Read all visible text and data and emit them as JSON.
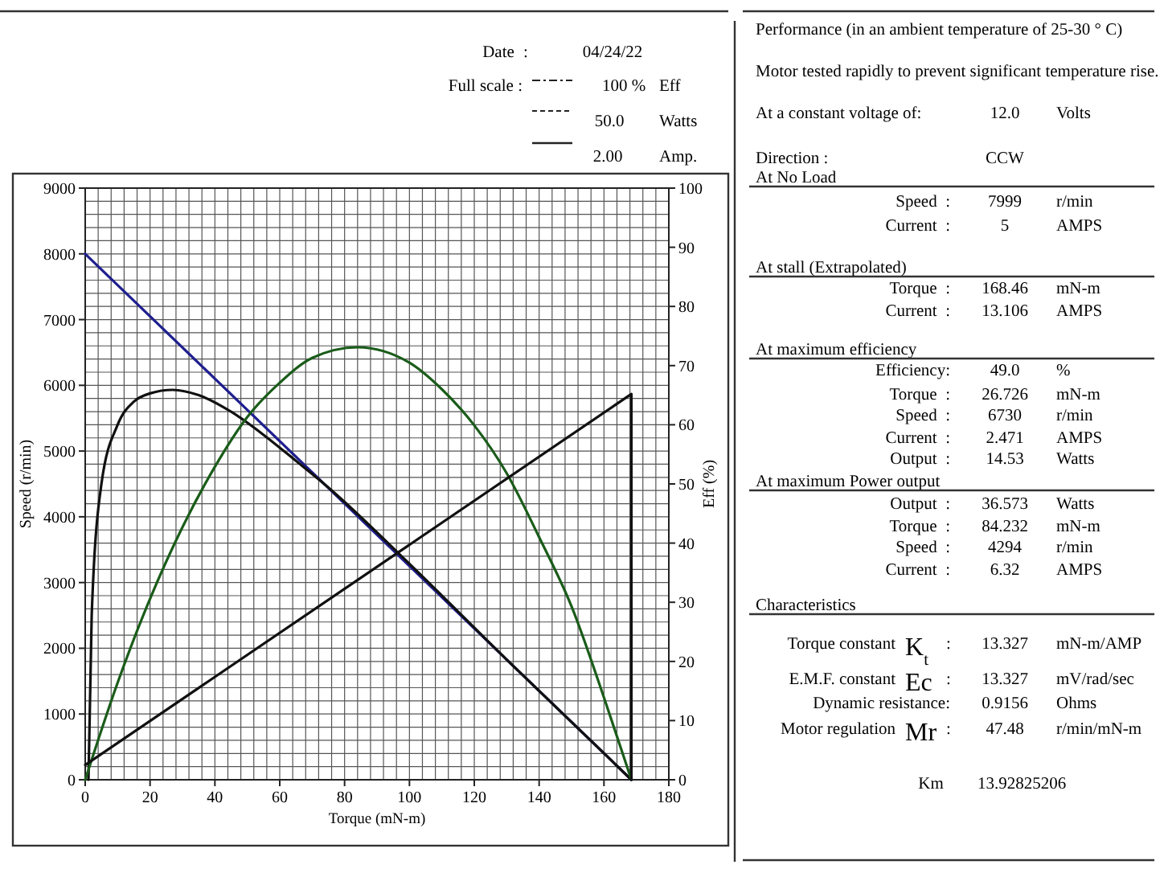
{
  "chart_data": [
    {
      "type": "line",
      "xlabel": "Torque (mN-m)",
      "ylabel": "Speed (r/min)",
      "y2label": "Eff (%)",
      "xlim": [
        0,
        180
      ],
      "xticks": [
        0,
        20,
        40,
        60,
        80,
        100,
        120,
        140,
        160,
        180
      ],
      "ylim": [
        0,
        9000
      ],
      "yticks": [
        0,
        1000,
        2000,
        3000,
        4000,
        5000,
        6000,
        7000,
        8000,
        9000
      ],
      "y2lim": [
        0,
        100
      ],
      "y2ticks": [
        0,
        10,
        20,
        30,
        40,
        50,
        60,
        70,
        80,
        90,
        100
      ],
      "grid": true,
      "line_style": "solid",
      "marker": "none",
      "series": [
        {
          "color": "#1f1f8f",
          "x": [
            0,
            168.46
          ],
          "values": [
            8000,
            0
          ]
        },
        {
          "color": "#111111",
          "axis": "y2",
          "x": [
            1,
            2,
            5,
            10,
            15,
            20,
            27,
            35,
            45,
            55,
            65,
            75,
            100,
            130,
            168.46
          ],
          "values": [
            0,
            27.8,
            50,
            60,
            63.9,
            65.3,
            65.9,
            65,
            62.2,
            58.3,
            53.9,
            49.4,
            36.5,
            20.3,
            0
          ]
        },
        {
          "color": "#1a5c1a",
          "axis": "y2",
          "x": [
            0,
            10,
            20,
            30,
            40,
            50,
            60,
            70,
            84,
            100,
            110,
            120,
            130,
            140,
            150,
            160,
            168.46
          ],
          "values": [
            0,
            16.4,
            30.6,
            42.7,
            52.9,
            61.3,
            67.1,
            71.3,
            73.1,
            70.5,
            66,
            59.9,
            51.8,
            41,
            29.3,
            13.9,
            0
          ]
        },
        {
          "color": "#111111",
          "axis": "y2",
          "x": [
            0,
            168.46,
            168.46
          ],
          "values": [
            2.5,
            65.2,
            0
          ]
        }
      ],
      "annotations": [
        "Date",
        ":",
        "04/24/22",
        "Full scale :",
        "100 %",
        "Eff",
        "50.0",
        "Watts",
        "2.00",
        "Amp."
      ]
    },
    {
      "type": "other",
      "annotations": [
        "Performance (in an ambient temperature of 25-30 ° C)",
        "Motor tested rapidly to prevent significant temperature rise.",
        "At a constant voltage of:",
        "12.0",
        "Volts",
        "Direction :",
        "CCW",
        "At No Load",
        "Speed  :",
        "7999",
        "r/min",
        "Current  :",
        "5",
        "AMPS",
        "At stall (Extrapolated)",
        "Torque  :",
        "168.46",
        "mN-m",
        "Current  :",
        "13.106",
        "AMPS",
        "At maximum efficiency",
        "Efficiency:",
        "49.0",
        "%",
        "Torque  :",
        "26.726",
        "mN-m",
        "Speed  :",
        "6730",
        "r/min",
        "Current  :",
        "2.471",
        "AMPS",
        "Output  :",
        "14.53",
        "Watts",
        "At maximum Power output",
        "Output  :",
        "36.573",
        "Watts",
        "Torque  :",
        "84.232",
        "mN-m",
        "Speed  :",
        "4294",
        "r/min",
        "Current  :",
        "6.32",
        "AMPS",
        "Characteristics",
        "Torque constant",
        "K$_{t}$",
        ":",
        "13.327",
        "mN-m/AMP",
        "E.M.F. constant",
        "Ec",
        ":",
        "13.327",
        "mV/rad/sec",
        "Dynamic resistance:",
        "0.9156",
        "Ohms",
        "Motor regulation",
        "Mr",
        ":",
        "47.48",
        "r/min/mN-m",
        "Km",
        "13.92825206"
      ]
    }
  ]
}
